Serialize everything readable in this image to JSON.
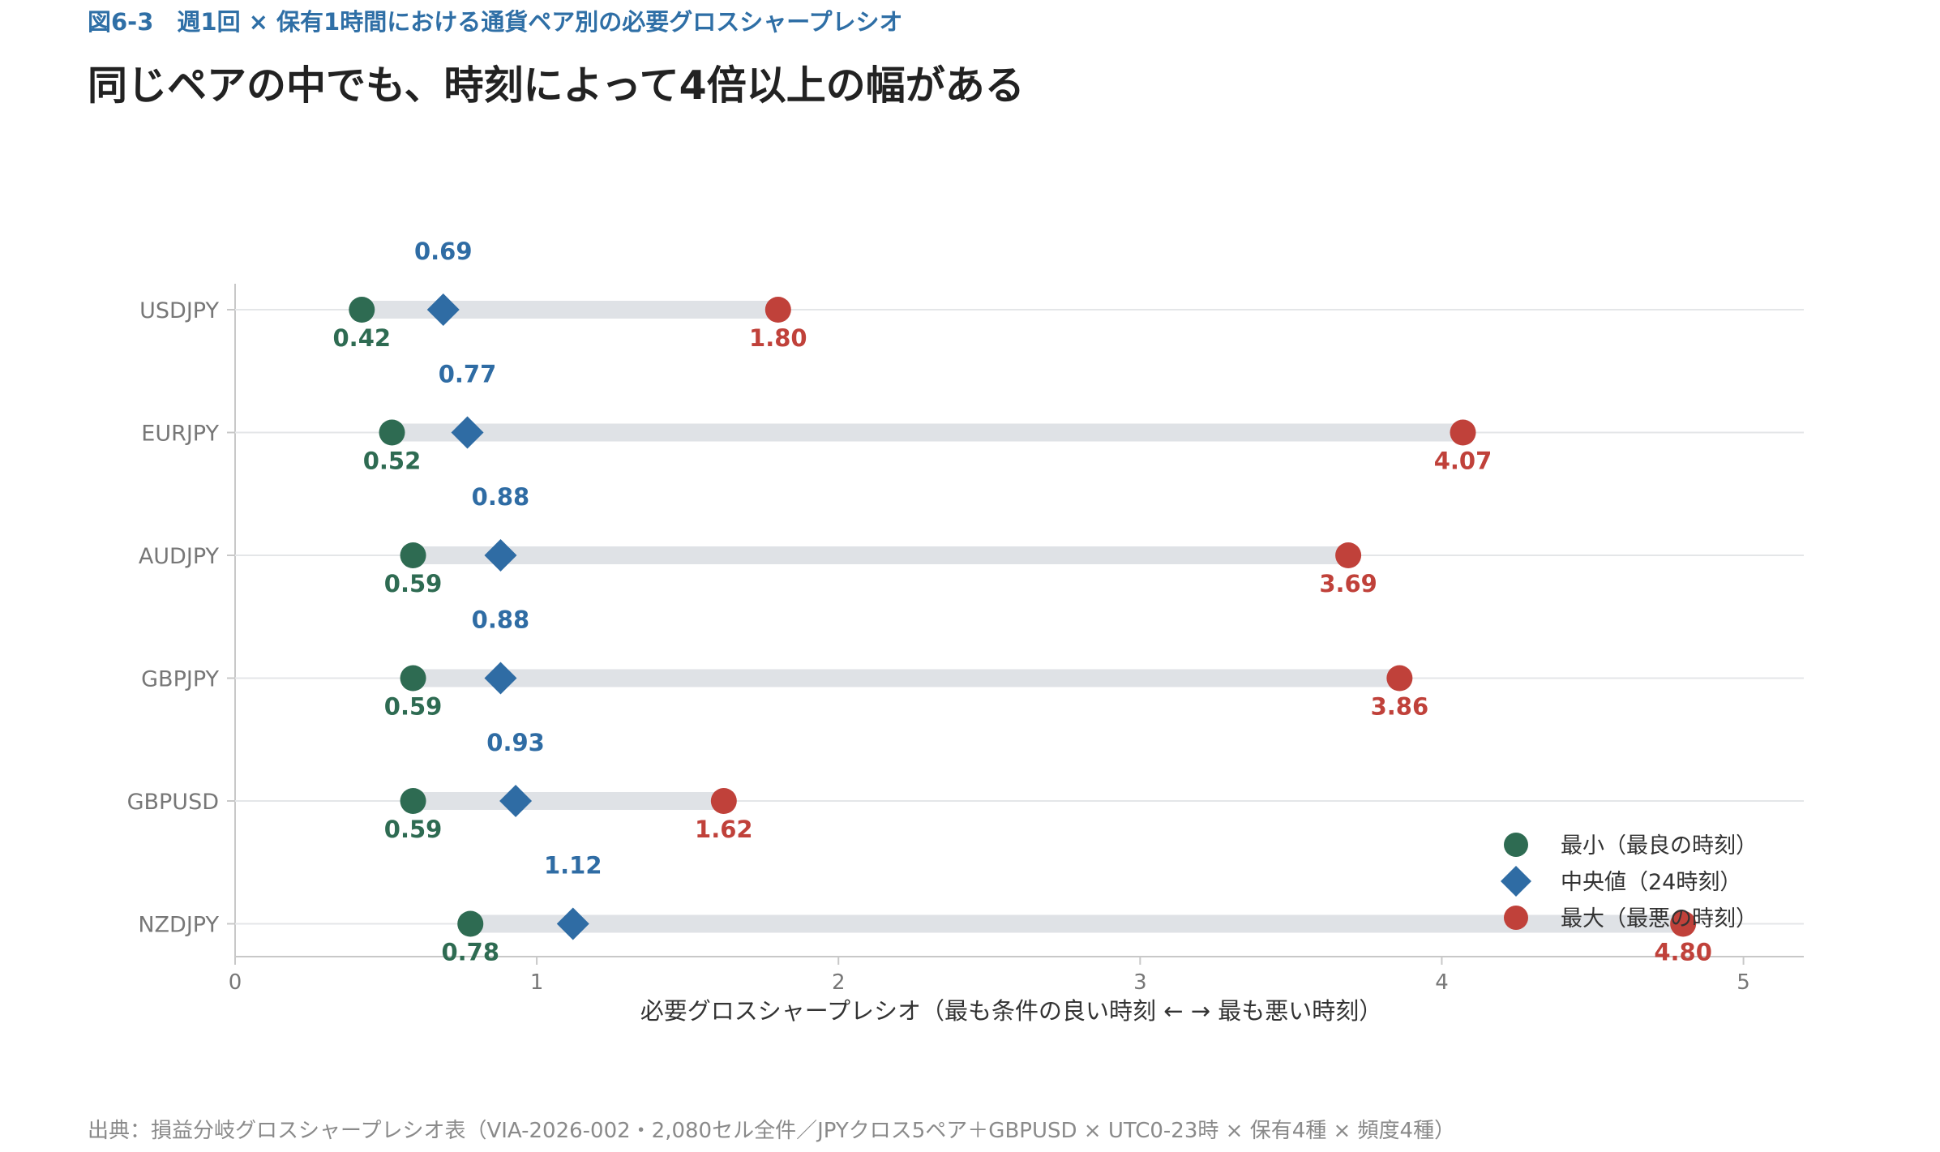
{
  "figure_label": "図6-3　週1回 × 保有1時間における通貨ペア別の必要グロスシャープレシオ",
  "headline": "同じペアの中でも、時刻によって4倍以上の幅がある",
  "source_note": "出典：損益分岐グロスシャープレシオ表（VIA-2026-002・2,080セル全件／JPYクロス5ペア＋GBPUSD × UTC0-23時 × 保有4種 × 頻度4種）",
  "colors": {
    "min": "#2e6b52",
    "median": "#2f6ca4",
    "max": "#c0413a",
    "bar": "#dfe2e6",
    "grid": "#e4e6e8",
    "axis": "#c8c8c8",
    "tick_text": "#777777"
  },
  "chart_data": {
    "type": "dumbbell",
    "xlabel": "必要グロスシャープレシオ（最も条件の良い時刻 ← → 最も悪い時刻）",
    "xlim": [
      0,
      5.2
    ],
    "xticks": [
      0,
      1,
      2,
      3,
      4,
      5
    ],
    "grid": true,
    "legend_position": "bottom-right",
    "categories": [
      "USDJPY",
      "EURJPY",
      "AUDJPY",
      "GBPJPY",
      "GBPUSD",
      "NZDJPY"
    ],
    "series": [
      {
        "name": "最小（最良の時刻）",
        "key": "min",
        "marker": "circle",
        "values": [
          0.42,
          0.52,
          0.59,
          0.59,
          0.59,
          0.78
        ],
        "labels": [
          "0.42",
          "0.52",
          "0.59",
          "0.59",
          "0.59",
          "0.78"
        ]
      },
      {
        "name": "中央値（24時刻）",
        "key": "median",
        "marker": "diamond",
        "values": [
          0.69,
          0.77,
          0.88,
          0.88,
          0.93,
          1.12
        ],
        "labels": [
          "0.69",
          "0.77",
          "0.88",
          "0.88",
          "0.93",
          "1.12"
        ]
      },
      {
        "name": "最大（最悪の時刻）",
        "key": "max",
        "marker": "circle",
        "values": [
          1.8,
          4.07,
          3.69,
          3.86,
          1.62,
          4.8
        ],
        "labels": [
          "1.80",
          "4.07",
          "3.69",
          "3.86",
          "1.62",
          "4.80"
        ]
      }
    ]
  }
}
